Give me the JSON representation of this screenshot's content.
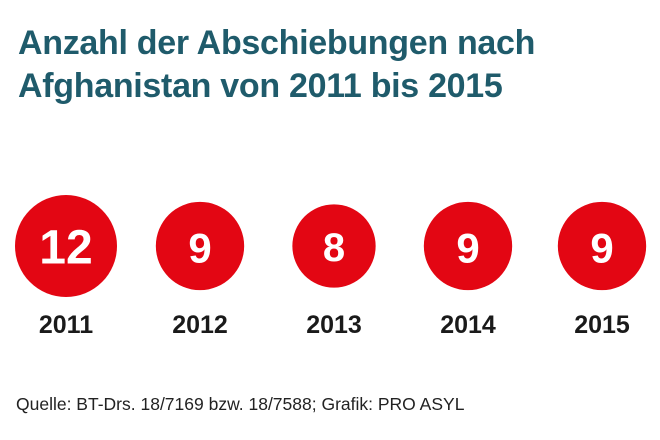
{
  "title": {
    "line1": "Anzahl der Abschiebungen nach",
    "line2": "Afghanistan von 2011 bis 2015"
  },
  "source": "Quelle: BT-Drs. 18/7169 bzw. 18/7588; Grafik: PRO ASYL",
  "colors": {
    "title": "#1f5b6b",
    "bubble": "#e30613",
    "bubble_text": "#ffffff",
    "year_text": "#1a1a1a"
  },
  "chart_data": {
    "type": "bubble",
    "title": "Anzahl der Abschiebungen nach Afghanistan von 2011 bis 2015",
    "xlabel": "",
    "ylabel": "",
    "categories": [
      "2011",
      "2012",
      "2013",
      "2014",
      "2015"
    ],
    "values": [
      12,
      9,
      8,
      9,
      9
    ],
    "value_labels": [
      "12",
      "9",
      "8",
      "9",
      "9"
    ],
    "legend": "none",
    "grid": false
  }
}
